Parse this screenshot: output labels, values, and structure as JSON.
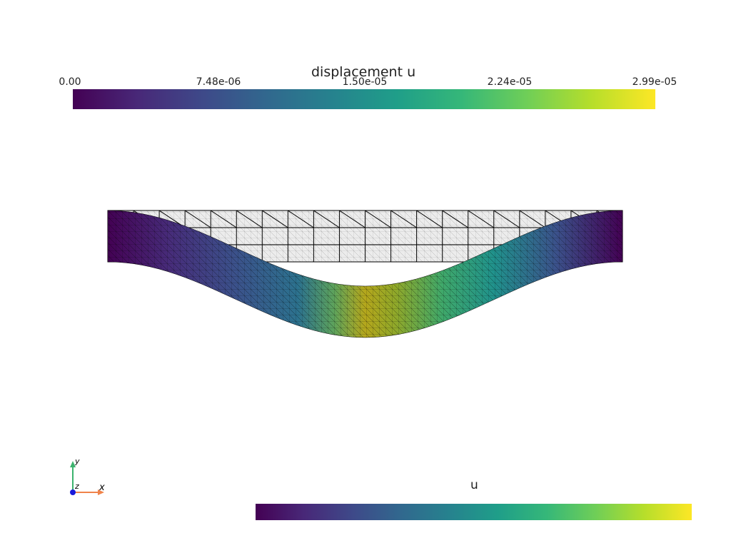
{
  "scalar_bars": {
    "top": {
      "title": "displacement u",
      "ticks": [
        "0.00",
        "7.48e-06",
        "1.50e-05",
        "2.24e-05",
        "2.99e-05"
      ],
      "colormap": "viridis"
    },
    "bottom": {
      "title": "u",
      "colormap": "viridis"
    }
  },
  "axes_widget": {
    "x_label": "x",
    "y_label": "y",
    "z_label": "z",
    "x_color": "#f0834a",
    "y_color": "#3cb36e",
    "z_color": "#1a1adb"
  },
  "colors": {
    "mesh_line": "#000000",
    "undeformed_fill": "#e8e8e8",
    "background": "#ffffff"
  }
}
